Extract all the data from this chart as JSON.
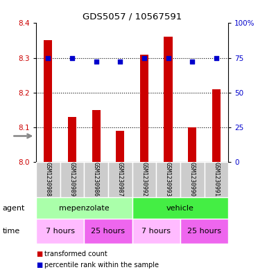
{
  "title": "GDS5057 / 10567591",
  "samples": [
    "GSM1230988",
    "GSM1230989",
    "GSM1230986",
    "GSM1230987",
    "GSM1230992",
    "GSM1230993",
    "GSM1230990",
    "GSM1230991"
  ],
  "bar_values": [
    8.35,
    8.13,
    8.15,
    8.09,
    8.31,
    8.36,
    8.1,
    8.21
  ],
  "percentile_y": [
    8.3,
    8.3,
    8.29,
    8.29,
    8.3,
    8.3,
    8.29,
    8.3
  ],
  "ylim": [
    8.0,
    8.4
  ],
  "y2lim": [
    0,
    100
  ],
  "yticks": [
    8.0,
    8.1,
    8.2,
    8.3,
    8.4
  ],
  "y2ticks": [
    0,
    25,
    50,
    75,
    100
  ],
  "y2ticklabels": [
    "0",
    "25",
    "50",
    "75",
    "100%"
  ],
  "bar_color": "#cc0000",
  "dot_color": "#0000cc",
  "bar_width": 0.35,
  "agent_row": [
    {
      "label": "mepenzolate",
      "start": 0,
      "end": 4,
      "color": "#aaffaa"
    },
    {
      "label": "vehicle",
      "start": 4,
      "end": 8,
      "color": "#44ee44"
    }
  ],
  "time_row": [
    {
      "label": "7 hours",
      "start": 0,
      "end": 2,
      "color": "#ffbbff"
    },
    {
      "label": "25 hours",
      "start": 2,
      "end": 4,
      "color": "#ee66ee"
    },
    {
      "label": "7 hours",
      "start": 4,
      "end": 6,
      "color": "#ffbbff"
    },
    {
      "label": "25 hours",
      "start": 6,
      "end": 8,
      "color": "#ee66ee"
    }
  ],
  "background_color": "#ffffff",
  "sample_bg_color": "#cccccc",
  "gridline_color": "#000000"
}
